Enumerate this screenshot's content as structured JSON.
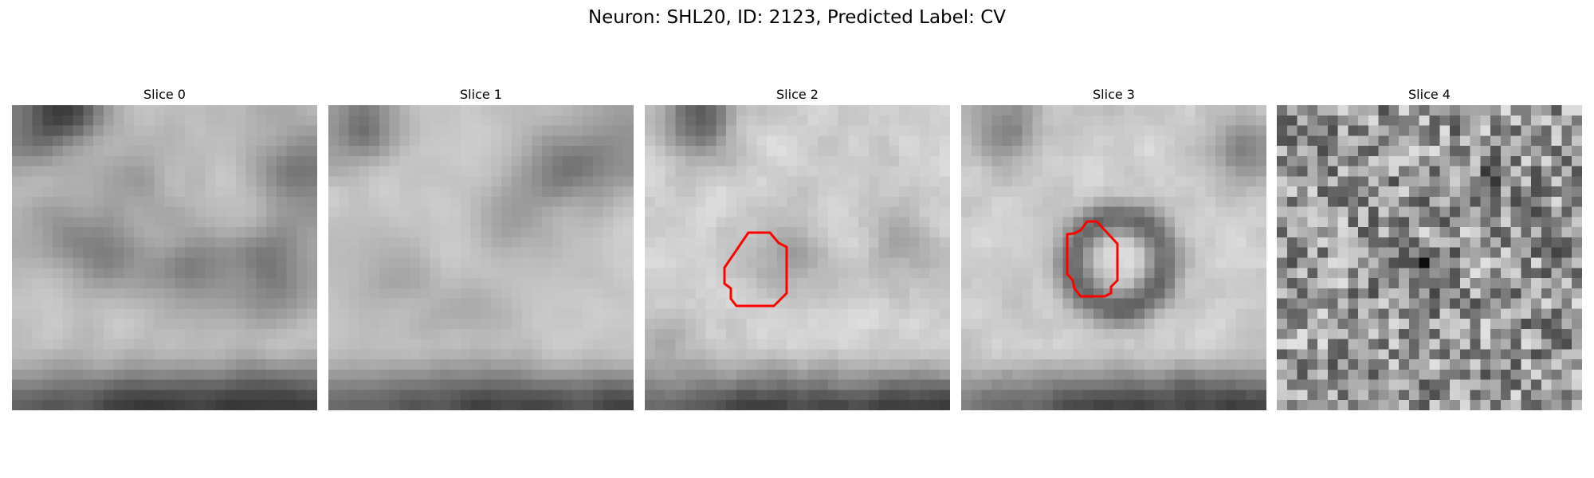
{
  "suptitle": "Neuron: SHL20, ID: 2123, Predicted Label: CV",
  "outline_color": "#ff0000",
  "slices": [
    {
      "title": "Slice 0",
      "has_outline": false
    },
    {
      "title": "Slice 1",
      "has_outline": false
    },
    {
      "title": "Slice 2",
      "has_outline": true
    },
    {
      "title": "Slice 3",
      "has_outline": true
    },
    {
      "title": "Slice 4",
      "has_outline": false
    }
  ]
}
